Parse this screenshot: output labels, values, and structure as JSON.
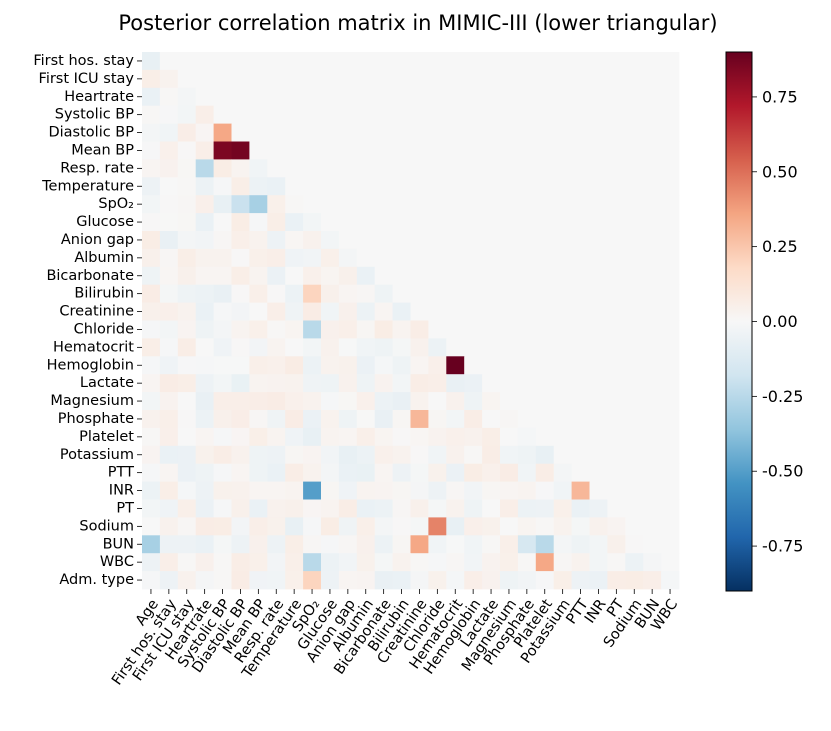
{
  "chart_data": {
    "type": "heatmap",
    "title": "Posterior correlation matrix in MIMIC-III (lower triangular)",
    "variables": [
      "Age",
      "First hos. stay",
      "First ICU stay",
      "Heartrate",
      "Systolic BP",
      "Diastolic BP",
      "Mean BP",
      "Resp. rate",
      "Temperature",
      "SpO₂",
      "Glucose",
      "Anion gap",
      "Albumin",
      "Bicarbonate",
      "Bilirubin",
      "Creatinine",
      "Chloride",
      "Hematocrit",
      "Hemoglobin",
      "Lactate",
      "Magnesium",
      "Phosphate",
      "Platelet",
      "Potassium",
      "PTT",
      "INR",
      "PT",
      "Sodium",
      "BUN",
      "WBC",
      "Adm. type"
    ],
    "row_labels": [
      "First hos. stay",
      "First ICU stay",
      "Heartrate",
      "Systolic BP",
      "Diastolic BP",
      "Mean BP",
      "Resp. rate",
      "Temperature",
      "SpO₂",
      "Glucose",
      "Anion gap",
      "Albumin",
      "Bicarbonate",
      "Bilirubin",
      "Creatinine",
      "Chloride",
      "Hematocrit",
      "Hemoglobin",
      "Lactate",
      "Magnesium",
      "Phosphate",
      "Platelet",
      "Potassium",
      "PTT",
      "INR",
      "PT",
      "Sodium",
      "BUN",
      "WBC",
      "Adm. type"
    ],
    "col_labels": [
      "Age",
      "First hos. stay",
      "First ICU stay",
      "Heartrate",
      "Systolic BP",
      "Diastolic BP",
      "Mean BP",
      "Resp. rate",
      "Temperature",
      "SpO₂",
      "Glucose",
      "Anion gap",
      "Albumin",
      "Bicarbonate",
      "Bilirubin",
      "Creatinine",
      "Chloride",
      "Hematocrit",
      "Hemoglobin",
      "Lactate",
      "Magnesium",
      "Phosphate",
      "Platelet",
      "Potassium",
      "PTT",
      "INR",
      "PT",
      "Sodium",
      "BUN",
      "WBC"
    ],
    "colorbar": {
      "ticks": [
        "0.75",
        "0.50",
        "0.25",
        "0.00",
        "-0.25",
        "-0.50",
        "-0.75"
      ],
      "range": [
        -0.9,
        0.9
      ]
    },
    "strong_correlations": [
      {
        "row": "Mean BP",
        "col": "Systolic BP",
        "value": 0.85
      },
      {
        "row": "Mean BP",
        "col": "Diastolic BP",
        "value": 0.87
      },
      {
        "row": "Hemoglobin",
        "col": "Hematocrit",
        "value": 0.95
      },
      {
        "row": "INR",
        "col": "SpO₂",
        "value": -0.5
      },
      {
        "row": "Sodium",
        "col": "Chloride",
        "value": 0.45
      },
      {
        "row": "Diastolic BP",
        "col": "Systolic BP",
        "value": 0.35
      },
      {
        "row": "Phosphate",
        "col": "Creatinine",
        "value": 0.3
      },
      {
        "row": "BUN",
        "col": "Creatinine",
        "value": 0.35
      },
      {
        "row": "WBC",
        "col": "Platelet",
        "value": 0.35
      },
      {
        "row": "INR",
        "col": "PTT",
        "value": 0.3
      },
      {
        "row": "BUN",
        "col": "Age",
        "value": -0.3
      },
      {
        "row": "Resp. rate",
        "col": "Heartrate",
        "value": -0.25
      },
      {
        "row": "SpO₂",
        "col": "Diastolic BP",
        "value": -0.2
      },
      {
        "row": "SpO₂",
        "col": "Mean BP",
        "value": -0.3
      },
      {
        "row": "Chloride",
        "col": "SpO₂",
        "value": -0.25
      },
      {
        "row": "BUN",
        "col": "Platelet",
        "value": -0.25
      },
      {
        "row": "BUN",
        "col": "Phosphate",
        "value": -0.15
      },
      {
        "row": "WBC",
        "col": "SpO₂",
        "value": -0.25
      },
      {
        "row": "Adm. type",
        "col": "SpO₂",
        "value": 0.2
      },
      {
        "row": "Bilirubin",
        "col": "SpO₂",
        "value": 0.2
      }
    ]
  }
}
